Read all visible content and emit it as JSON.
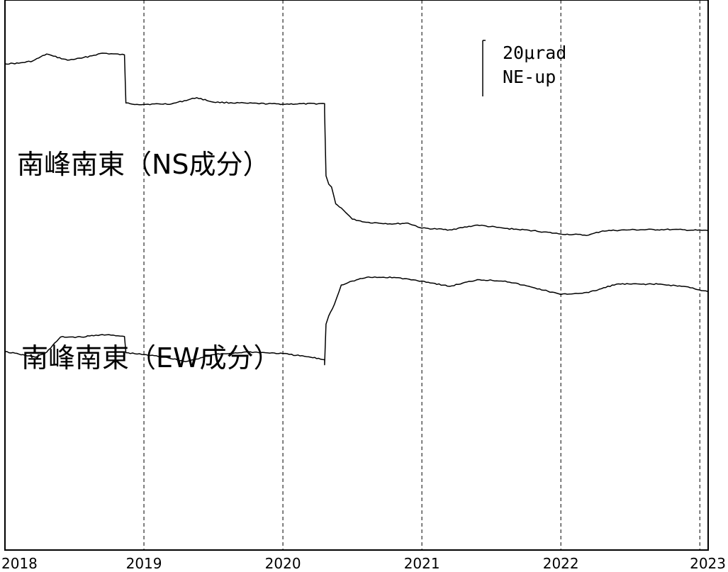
{
  "chart_data": {
    "type": "line",
    "x_unit": "year",
    "x_ticks": [
      "2018",
      "2019",
      "2020",
      "2021",
      "2022",
      "2023"
    ],
    "xlim": [
      2018.0,
      2023.06
    ],
    "grid": "vertical dashed lines at each year",
    "scale_bar": {
      "value_text": "20μrad",
      "direction_text": "NE-up",
      "value": 20,
      "unit": "μrad"
    },
    "series": [
      {
        "name": "南峰南東（NS成分）",
        "points": [
          [
            2018.0,
            0.0
          ],
          [
            2018.1,
            0.2
          ],
          [
            2018.2,
            1.0
          ],
          [
            2018.3,
            3.5
          ],
          [
            2018.35,
            2.7
          ],
          [
            2018.45,
            1.3
          ],
          [
            2018.55,
            2.0
          ],
          [
            2018.7,
            3.8
          ],
          [
            2018.86,
            3.2
          ],
          [
            2018.87,
            -14.0
          ],
          [
            2018.95,
            -14.5
          ],
          [
            2019.2,
            -14.3
          ],
          [
            2019.38,
            -12.1
          ],
          [
            2019.5,
            -13.7
          ],
          [
            2019.75,
            -14.1
          ],
          [
            2020.0,
            -14.4
          ],
          [
            2020.3,
            -14.2
          ],
          [
            2020.3,
            -17.0
          ],
          [
            2020.31,
            -40.0
          ],
          [
            2020.33,
            -43.0
          ],
          [
            2020.35,
            -44.0
          ],
          [
            2020.38,
            -50.0
          ],
          [
            2020.42,
            -51.5
          ],
          [
            2020.45,
            -53.0
          ],
          [
            2020.5,
            -55.5
          ],
          [
            2020.6,
            -56.6
          ],
          [
            2020.8,
            -57.2
          ],
          [
            2020.9,
            -56.9
          ],
          [
            2021.0,
            -58.7
          ],
          [
            2021.2,
            -59.3
          ],
          [
            2021.4,
            -57.6
          ],
          [
            2021.6,
            -58.8
          ],
          [
            2021.8,
            -59.6
          ],
          [
            2022.0,
            -60.8
          ],
          [
            2022.2,
            -61.2
          ],
          [
            2022.3,
            -59.7
          ],
          [
            2022.5,
            -59.3
          ],
          [
            2022.8,
            -59.2
          ],
          [
            2023.06,
            -59.6
          ]
        ]
      },
      {
        "name": "南峰南東（EW成分）",
        "points": [
          [
            2018.0,
            -102.8
          ],
          [
            2018.1,
            -103.7
          ],
          [
            2018.22,
            -104.8
          ],
          [
            2018.3,
            -103.0
          ],
          [
            2018.4,
            -97.6
          ],
          [
            2018.55,
            -97.6
          ],
          [
            2018.7,
            -96.7
          ],
          [
            2018.86,
            -97.4
          ],
          [
            2018.87,
            -103.2
          ],
          [
            2019.0,
            -103.9
          ],
          [
            2019.15,
            -104.7
          ],
          [
            2019.3,
            -106.4
          ],
          [
            2019.5,
            -103.9
          ],
          [
            2019.75,
            -102.9
          ],
          [
            2020.0,
            -103.5
          ],
          [
            2020.2,
            -104.8
          ],
          [
            2020.3,
            -105.7
          ],
          [
            2020.3,
            -107.5
          ],
          [
            2020.31,
            -93.0
          ],
          [
            2020.33,
            -90.0
          ],
          [
            2020.37,
            -86.0
          ],
          [
            2020.42,
            -79.0
          ],
          [
            2020.5,
            -77.6
          ],
          [
            2020.6,
            -76.3
          ],
          [
            2020.8,
            -76.3
          ],
          [
            2021.0,
            -77.6
          ],
          [
            2021.2,
            -79.5
          ],
          [
            2021.4,
            -77.1
          ],
          [
            2021.6,
            -77.6
          ],
          [
            2021.8,
            -79.9
          ],
          [
            2022.0,
            -82.4
          ],
          [
            2022.2,
            -81.7
          ],
          [
            2022.4,
            -78.7
          ],
          [
            2022.7,
            -78.7
          ],
          [
            2022.9,
            -79.6
          ],
          [
            2023.06,
            -81.4
          ]
        ]
      }
    ]
  }
}
